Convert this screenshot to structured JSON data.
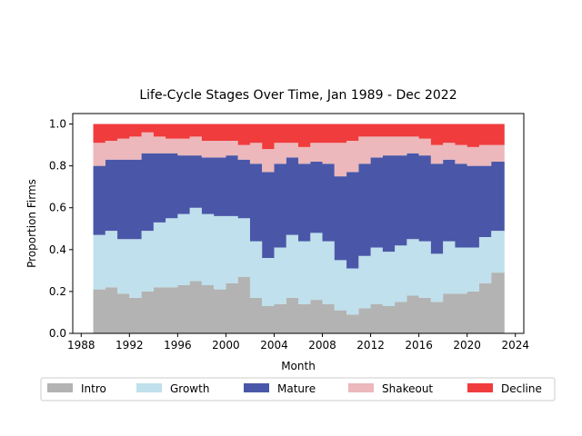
{
  "chart_data": {
    "type": "area",
    "stacked": true,
    "title": "Life-Cycle Stages Over Time, Jan 1989 - Dec 2022",
    "xlabel": "Month",
    "ylabel": "Proportion Firms",
    "xlim": [
      1987.3,
      2024.7
    ],
    "ylim": [
      0.0,
      1.05
    ],
    "xticks": [
      1988,
      1992,
      1996,
      2000,
      2004,
      2008,
      2012,
      2016,
      2020,
      2024
    ],
    "yticks": [
      0.0,
      0.2,
      0.4,
      0.6,
      0.8,
      1.0
    ],
    "xtick_labels": [
      "1988",
      "1992",
      "1996",
      "2000",
      "2004",
      "2008",
      "2012",
      "2016",
      "2020",
      "2024"
    ],
    "ytick_labels": [
      "0.0",
      "0.2",
      "0.4",
      "0.6",
      "0.8",
      "1.0"
    ],
    "legend_position": "bottom",
    "x": [
      1989,
      1990,
      1991,
      1992,
      1993,
      1994,
      1995,
      1996,
      1997,
      1998,
      1999,
      2000,
      2001,
      2002,
      2003,
      2004,
      2005,
      2006,
      2007,
      2008,
      2009,
      2010,
      2011,
      2012,
      2013,
      2014,
      2015,
      2016,
      2017,
      2018,
      2019,
      2020,
      2021,
      2022,
      2023
    ],
    "series": [
      {
        "name": "Intro",
        "color": "#b3b3b3",
        "values": [
          0.21,
          0.22,
          0.19,
          0.17,
          0.2,
          0.22,
          0.22,
          0.23,
          0.25,
          0.23,
          0.21,
          0.24,
          0.27,
          0.17,
          0.13,
          0.14,
          0.17,
          0.14,
          0.16,
          0.14,
          0.11,
          0.09,
          0.12,
          0.14,
          0.13,
          0.15,
          0.18,
          0.17,
          0.15,
          0.19,
          0.19,
          0.2,
          0.24,
          0.29,
          0.29
        ]
      },
      {
        "name": "Growth",
        "color": "#bfe0ec",
        "values": [
          0.26,
          0.27,
          0.26,
          0.28,
          0.29,
          0.31,
          0.33,
          0.34,
          0.35,
          0.34,
          0.35,
          0.32,
          0.28,
          0.27,
          0.23,
          0.27,
          0.3,
          0.3,
          0.32,
          0.3,
          0.24,
          0.22,
          0.25,
          0.27,
          0.26,
          0.27,
          0.27,
          0.27,
          0.23,
          0.25,
          0.22,
          0.21,
          0.22,
          0.2,
          0.2
        ]
      },
      {
        "name": "Mature",
        "color": "#4a57a8",
        "values": [
          0.33,
          0.34,
          0.38,
          0.38,
          0.37,
          0.33,
          0.31,
          0.28,
          0.25,
          0.27,
          0.28,
          0.29,
          0.28,
          0.37,
          0.41,
          0.4,
          0.37,
          0.37,
          0.34,
          0.37,
          0.4,
          0.46,
          0.44,
          0.43,
          0.46,
          0.43,
          0.41,
          0.41,
          0.43,
          0.39,
          0.4,
          0.39,
          0.34,
          0.33,
          0.33
        ]
      },
      {
        "name": "Shakeout",
        "color": "#ecb8bb",
        "values": [
          0.11,
          0.09,
          0.1,
          0.11,
          0.1,
          0.08,
          0.07,
          0.08,
          0.09,
          0.08,
          0.08,
          0.07,
          0.07,
          0.1,
          0.11,
          0.1,
          0.07,
          0.08,
          0.09,
          0.1,
          0.16,
          0.15,
          0.13,
          0.1,
          0.09,
          0.09,
          0.08,
          0.08,
          0.09,
          0.08,
          0.09,
          0.09,
          0.1,
          0.08,
          0.08
        ]
      },
      {
        "name": "Decline",
        "color": "#f03c3c",
        "values": [
          0.09,
          0.08,
          0.07,
          0.06,
          0.04,
          0.06,
          0.07,
          0.07,
          0.06,
          0.08,
          0.08,
          0.08,
          0.1,
          0.09,
          0.12,
          0.09,
          0.09,
          0.11,
          0.09,
          0.09,
          0.09,
          0.08,
          0.06,
          0.06,
          0.06,
          0.06,
          0.06,
          0.07,
          0.1,
          0.09,
          0.1,
          0.11,
          0.1,
          0.1,
          0.1
        ]
      }
    ]
  }
}
